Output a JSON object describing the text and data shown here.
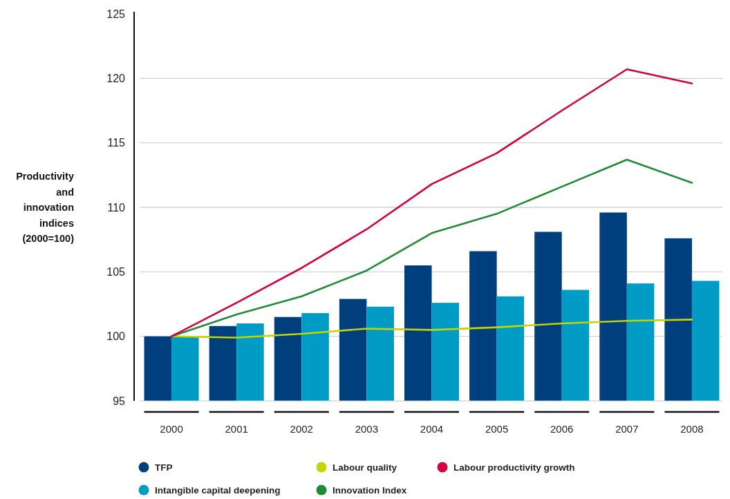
{
  "chart_data": {
    "type": "bar",
    "ylabel": "Productivity and innovation indices (2000=100)",
    "categories": [
      "2000",
      "2001",
      "2002",
      "2003",
      "2004",
      "2005",
      "2006",
      "2007",
      "2008"
    ],
    "series": [
      {
        "name": "TFP",
        "color": "#003f7d",
        "values": [
          100,
          100.8,
          101.5,
          102.9,
          105.5,
          106.6,
          108.1,
          109.6,
          107.6
        ]
      },
      {
        "name": "Intangible capital deepening",
        "color": "#009cc5",
        "values": [
          100,
          101,
          101.8,
          102.3,
          102.6,
          103.1,
          103.6,
          104.1,
          104.3
        ]
      },
      {
        "name": "Labour quality",
        "type": "line",
        "color": "#c3d400",
        "values": [
          100,
          99.9,
          100.2,
          100.6,
          100.5,
          100.7,
          101,
          101.2,
          101.3
        ]
      },
      {
        "name": "Innovation Index",
        "type": "line",
        "color": "#1e8c32",
        "values": [
          100,
          101.7,
          103.1,
          105.1,
          108,
          109.5,
          111.6,
          113.7,
          111.9
        ]
      },
      {
        "name": "Labour productivity growth",
        "type": "line",
        "color": "#d4003c",
        "values": [
          100,
          102.6,
          105.3,
          108.3,
          111.8,
          114.2,
          117.5,
          120.7,
          119.6
        ]
      }
    ],
    "ylim": [
      95,
      125
    ],
    "yticks": [
      95,
      100,
      105,
      110,
      115,
      120,
      125
    ],
    "grid": "y",
    "legend": "bottom",
    "line_style": "solid"
  }
}
